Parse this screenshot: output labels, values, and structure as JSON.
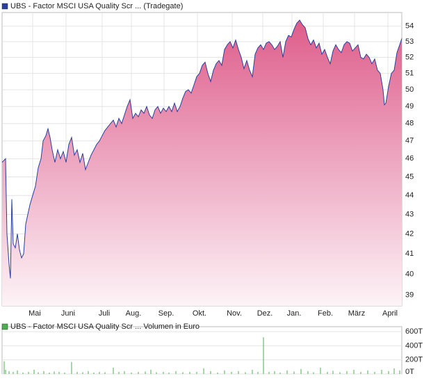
{
  "chart_data": [
    {
      "type": "area",
      "log_scale": true,
      "grid": true,
      "series": [
        {
          "name": "UBS - Factor MSCI USA Quality Scr ... (Tradegate)",
          "color": "#2a3f9e",
          "x": [
            0,
            5,
            7,
            10,
            12,
            14,
            16,
            19,
            22,
            25,
            28,
            31,
            34,
            37,
            40,
            44,
            48,
            52,
            56,
            59,
            63,
            66,
            69,
            72,
            76,
            80,
            84,
            88,
            92,
            96,
            100,
            104,
            108,
            112,
            116,
            120,
            124,
            128,
            132,
            136,
            140,
            144,
            148,
            152,
            156,
            160,
            164,
            168,
            172,
            176,
            180,
            184,
            188,
            192,
            196,
            200,
            204,
            208,
            212,
            216,
            220,
            224,
            228,
            232,
            236,
            240,
            244,
            248,
            252,
            256,
            260,
            264,
            268,
            272,
            276,
            280,
            284,
            288,
            292,
            296,
            300,
            304,
            308,
            312,
            316,
            320,
            324,
            328,
            332,
            336,
            340,
            344,
            348,
            352,
            356,
            360,
            364,
            368,
            372,
            376,
            380,
            384,
            388,
            392,
            396,
            400,
            404,
            408,
            412,
            416,
            420,
            424,
            428,
            432,
            436,
            440,
            444,
            448,
            452,
            456,
            460,
            464,
            468,
            472,
            476,
            480,
            484,
            488,
            492,
            496,
            500,
            504,
            508,
            512,
            516,
            520,
            524,
            528,
            532,
            536,
            540,
            544,
            548,
            550,
            552,
            556,
            560,
            564,
            568,
            572,
            575
          ],
          "values": [
            45.8,
            46,
            42,
            40.5,
            39.8,
            43.8,
            41.5,
            41.3,
            42,
            41.2,
            40.8,
            41,
            42.5,
            43,
            43.5,
            44,
            44.5,
            45.5,
            46,
            47,
            47.3,
            47.7,
            47.2,
            46.5,
            45.8,
            46.5,
            46,
            46.4,
            45.8,
            46.8,
            47.2,
            46.2,
            46.5,
            45.8,
            46.3,
            45.4,
            45.8,
            46.2,
            46.5,
            46.8,
            47,
            47.3,
            47.6,
            47.8,
            48,
            48.2,
            47.8,
            48.3,
            48,
            48.5,
            49,
            49.4,
            48.3,
            48.6,
            48.4,
            48.8,
            48.6,
            49,
            48.5,
            48.3,
            48.8,
            49,
            48.6,
            48.9,
            48.7,
            49,
            48.7,
            49.2,
            48.7,
            49,
            49.5,
            49.9,
            50,
            49.8,
            50.3,
            50.8,
            51,
            51.5,
            51.7,
            51,
            50.5,
            51.2,
            51.6,
            51.8,
            51.5,
            52.5,
            52.8,
            53,
            52.6,
            53.1,
            52.5,
            52,
            51.3,
            51.8,
            51.2,
            50.8,
            52.2,
            52.6,
            52.8,
            52.5,
            52.9,
            53,
            52.8,
            52.5,
            52.7,
            53,
            52,
            53,
            53.4,
            53.3,
            53.8,
            54.2,
            54.4,
            54.1,
            53.9,
            53.2,
            52.8,
            53.1,
            52.6,
            52.9,
            52.2,
            52.5,
            52,
            51.6,
            52.4,
            52.8,
            52.5,
            52.3,
            52.8,
            53,
            52.9,
            52.4,
            52.6,
            52.8,
            52,
            51.9,
            52.2,
            52,
            51.6,
            51.9,
            51.2,
            51,
            50,
            49.1,
            49.2,
            50.2,
            51,
            51.2,
            52.3,
            52.8,
            53.2
          ]
        }
      ],
      "xlim": [
        0,
        575
      ],
      "ylim": [
        38.5,
        54.9
      ],
      "yticks": [
        39,
        40,
        41,
        42,
        43,
        44,
        45,
        46,
        47,
        48,
        49,
        50,
        51,
        52,
        53,
        54
      ],
      "xticks": [
        {
          "value": 44,
          "label": "Mai"
        },
        {
          "value": 92,
          "label": "Juni"
        },
        {
          "value": 144,
          "label": "Juli"
        },
        {
          "value": 186,
          "label": "Aug."
        },
        {
          "value": 233,
          "label": "Sep."
        },
        {
          "value": 281,
          "label": "Okt."
        },
        {
          "value": 331,
          "label": "Nov."
        },
        {
          "value": 375,
          "label": "Dez."
        },
        {
          "value": 417,
          "label": "Jan."
        },
        {
          "value": 462,
          "label": "Feb."
        },
        {
          "value": 507,
          "label": "März"
        },
        {
          "value": 555,
          "label": "April"
        }
      ]
    },
    {
      "type": "bar",
      "grid": true,
      "series": [
        {
          "name": "UBS - Factor MSCI USA Quality Scr ... Volumen in Euro",
          "color": "#4caf50",
          "x": [
            3,
            5,
            10,
            16,
            22,
            30,
            38,
            46,
            52,
            60,
            68,
            75,
            82,
            90,
            100,
            108,
            116,
            124,
            132,
            140,
            148,
            160,
            168,
            176,
            186,
            196,
            206,
            214,
            222,
            232,
            240,
            250,
            260,
            270,
            280,
            290,
            300,
            310,
            320,
            330,
            340,
            350,
            360,
            368,
            376,
            384,
            392,
            400,
            410,
            420,
            430,
            440,
            448,
            458,
            468,
            476,
            486,
            496,
            506,
            516,
            526,
            536,
            546,
            556,
            564,
            572
          ],
          "values": [
            180000,
            60000,
            40000,
            30000,
            50000,
            20000,
            30000,
            60000,
            25000,
            40000,
            20000,
            35000,
            30000,
            20000,
            170000,
            30000,
            25000,
            40000,
            20000,
            30000,
            25000,
            90000,
            30000,
            40000,
            20000,
            30000,
            35000,
            60000,
            25000,
            30000,
            20000,
            40000,
            25000,
            30000,
            30000,
            80000,
            40000,
            20000,
            50000,
            30000,
            40000,
            25000,
            60000,
            30000,
            520000,
            30000,
            40000,
            20000,
            50000,
            35000,
            70000,
            40000,
            25000,
            90000,
            30000,
            45000,
            25000,
            40000,
            60000,
            30000,
            50000,
            30000,
            60000,
            40000,
            80000,
            50000
          ]
        }
      ],
      "xlim": [
        0,
        575
      ],
      "ylim": [
        0,
        670000
      ],
      "yticks": [
        {
          "value": 0,
          "label": "0T"
        },
        {
          "value": 200000,
          "label": "200T"
        },
        {
          "value": 400000,
          "label": "400T"
        },
        {
          "value": 600000,
          "label": "600T"
        }
      ]
    }
  ]
}
